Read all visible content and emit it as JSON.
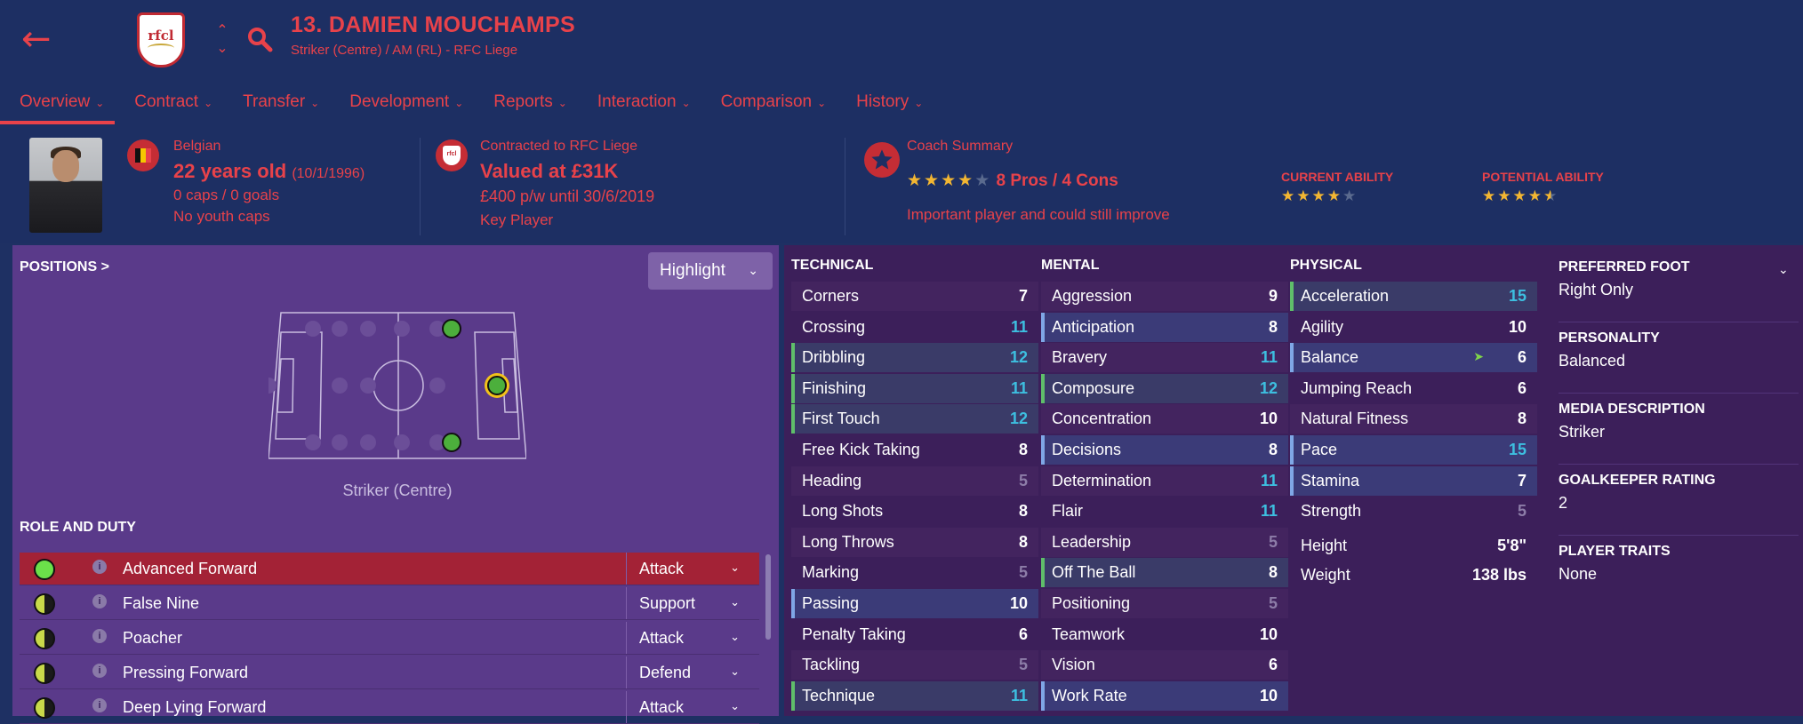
{
  "header": {
    "name": "13. DAMIEN MOUCHAMPS",
    "subtitle": "Striker (Centre) / AM (RL) - RFC Liege",
    "crest_text": "rfcl"
  },
  "tabs": [
    {
      "label": "Overview",
      "active": true
    },
    {
      "label": "Contract"
    },
    {
      "label": "Transfer"
    },
    {
      "label": "Development"
    },
    {
      "label": "Reports"
    },
    {
      "label": "Interaction"
    },
    {
      "label": "Comparison"
    },
    {
      "label": "History"
    }
  ],
  "info": {
    "nationality": "Belgian",
    "age": "22 years old",
    "dob": "(10/1/1996)",
    "caps": "0 caps / 0 goals",
    "youth_caps": "No youth caps",
    "contract_label": "Contracted to RFC Liege",
    "value": "Valued at £31K",
    "wage": "£400 p/w until 30/6/2019",
    "status": "Key Player",
    "coach_label": "Coach Summary",
    "coach_stars": 4,
    "coach_pros_cons": "8 Pros / 4 Cons",
    "coach_note": "Important player and could still improve",
    "current_ability_label": "CURRENT ABILITY",
    "current_ability_stars": 4,
    "potential_ability_label": "POTENTIAL ABILITY",
    "potential_ability_stars": 4.5
  },
  "positions": {
    "header": "POSITIONS >",
    "highlight_label": "Highlight",
    "position_label": "Striker (Centre)"
  },
  "role": {
    "header": "ROLE AND DUTY",
    "rows": [
      {
        "name": "Advanced Forward",
        "duty": "Attack",
        "suitability": "full",
        "selected": true
      },
      {
        "name": "False Nine",
        "duty": "Support",
        "suitability": "half"
      },
      {
        "name": "Poacher",
        "duty": "Attack",
        "suitability": "half"
      },
      {
        "name": "Pressing Forward",
        "duty": "Defend",
        "suitability": "half"
      },
      {
        "name": "Deep Lying Forward",
        "duty": "Attack",
        "suitability": "half"
      }
    ]
  },
  "attributes": {
    "technical": {
      "header": "TECHNICAL",
      "rows": [
        {
          "name": "Corners",
          "value": "7"
        },
        {
          "name": "Crossing",
          "value": "11"
        },
        {
          "name": "Dribbling",
          "value": "12"
        },
        {
          "name": "Finishing",
          "value": "11"
        },
        {
          "name": "First Touch",
          "value": "12"
        },
        {
          "name": "Free Kick Taking",
          "value": "8"
        },
        {
          "name": "Heading",
          "value": "5"
        },
        {
          "name": "Long Shots",
          "value": "8"
        },
        {
          "name": "Long Throws",
          "value": "8"
        },
        {
          "name": "Marking",
          "value": "5"
        },
        {
          "name": "Passing",
          "value": "10"
        },
        {
          "name": "Penalty Taking",
          "value": "6"
        },
        {
          "name": "Tackling",
          "value": "5"
        },
        {
          "name": "Technique",
          "value": "11"
        }
      ]
    },
    "mental": {
      "header": "MENTAL",
      "rows": [
        {
          "name": "Aggression",
          "value": "9"
        },
        {
          "name": "Anticipation",
          "value": "8"
        },
        {
          "name": "Bravery",
          "value": "11"
        },
        {
          "name": "Composure",
          "value": "12"
        },
        {
          "name": "Concentration",
          "value": "10"
        },
        {
          "name": "Decisions",
          "value": "8"
        },
        {
          "name": "Determination",
          "value": "11"
        },
        {
          "name": "Flair",
          "value": "11"
        },
        {
          "name": "Leadership",
          "value": "5"
        },
        {
          "name": "Off The Ball",
          "value": "8"
        },
        {
          "name": "Positioning",
          "value": "5"
        },
        {
          "name": "Teamwork",
          "value": "10"
        },
        {
          "name": "Vision",
          "value": "6"
        },
        {
          "name": "Work Rate",
          "value": "10"
        }
      ]
    },
    "physical": {
      "header": "PHYSICAL",
      "rows": [
        {
          "name": "Acceleration",
          "value": "15"
        },
        {
          "name": "Agility",
          "value": "10"
        },
        {
          "name": "Balance",
          "value": "6"
        },
        {
          "name": "Jumping Reach",
          "value": "6"
        },
        {
          "name": "Natural Fitness",
          "value": "8"
        },
        {
          "name": "Pace",
          "value": "15"
        },
        {
          "name": "Stamina",
          "value": "7"
        },
        {
          "name": "Strength",
          "value": "5"
        }
      ]
    },
    "height_label": "Height",
    "height": "5'8\"",
    "weight_label": "Weight",
    "weight": "138 lbs"
  },
  "side": [
    {
      "h": "PREFERRED FOOT",
      "t": "Right Only"
    },
    {
      "h": "PERSONALITY",
      "t": "Balanced"
    },
    {
      "h": "MEDIA DESCRIPTION",
      "t": "Striker"
    },
    {
      "h": "GOALKEEPER RATING",
      "t": "2"
    },
    {
      "h": "PLAYER TRAITS",
      "t": "None"
    }
  ],
  "colors": {
    "accent": "#e8424a",
    "bg": "#1e3063",
    "panel_left": "#5a3a8a",
    "panel_right": "#3c1f5a",
    "high": "#3dbfe0",
    "low": "#8d7da8"
  }
}
